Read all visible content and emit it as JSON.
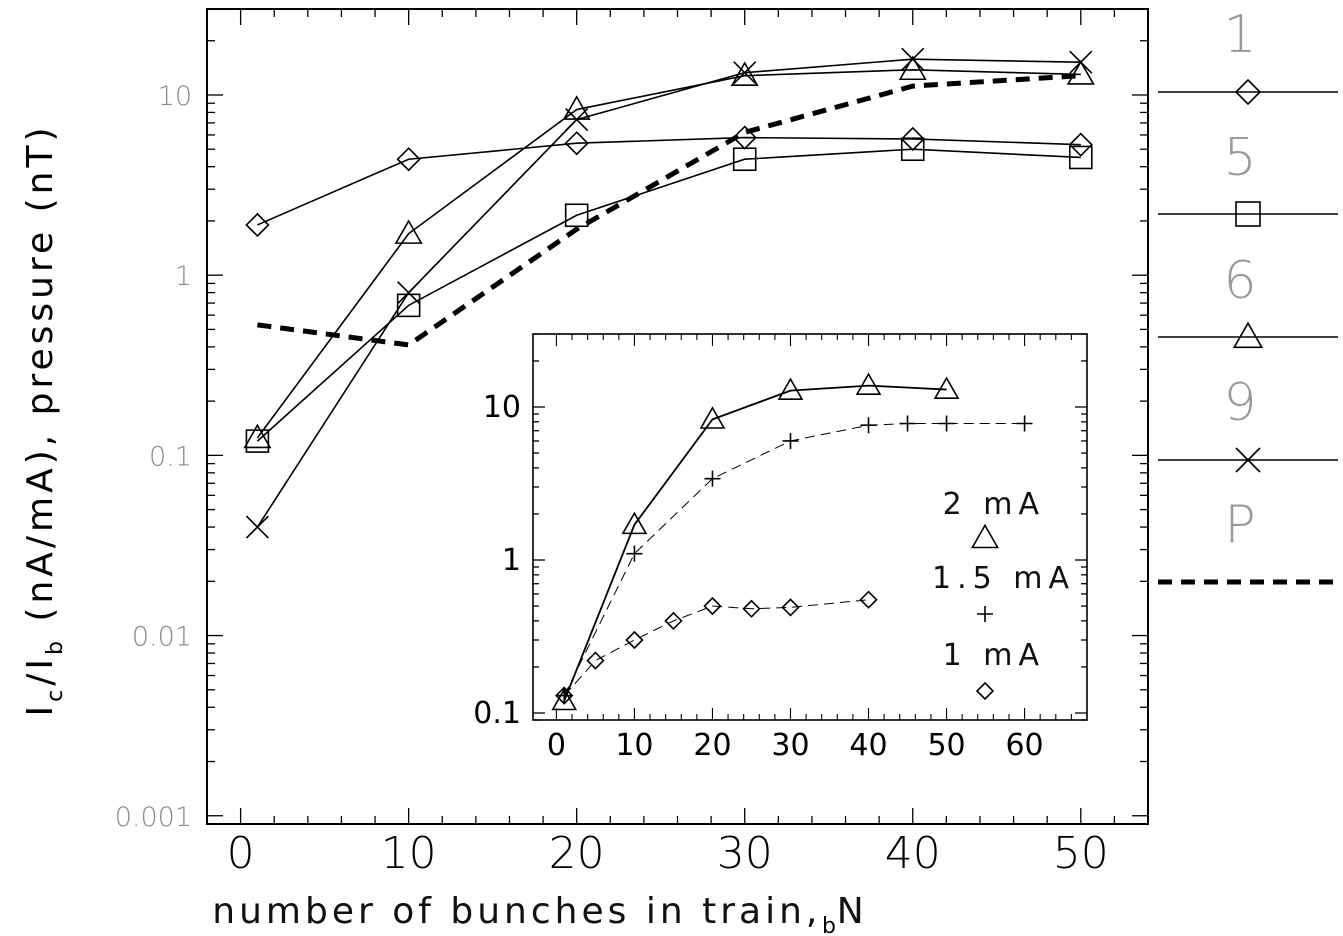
{
  "chart_data": [
    {
      "type": "line",
      "title": "",
      "xlabel": "number of bunches in train, N",
      "xlabel_sub": "b",
      "ylabel_parts": [
        "I",
        "c",
        "/I",
        "b",
        " (nA/mA), pressure (nT)"
      ],
      "xlim": [
        -2,
        54
      ],
      "ylim": [
        0.0009,
        30
      ],
      "yscale": "log",
      "x_ticks": [
        "0",
        "10",
        "20",
        "30",
        "40",
        "50"
      ],
      "y_ticks": [
        "0.001",
        "0.01",
        "0.1",
        "1",
        "10"
      ],
      "series": [
        {
          "name": "1",
          "marker": "diamond",
          "x": [
            1,
            10,
            20,
            30,
            40,
            50
          ],
          "y": [
            1.9,
            4.4,
            5.4,
            5.8,
            5.7,
            5.3
          ]
        },
        {
          "name": "5",
          "marker": "square",
          "x": [
            1,
            10,
            20,
            30,
            40,
            50
          ],
          "y": [
            0.12,
            0.68,
            2.15,
            4.4,
            5.0,
            4.5
          ]
        },
        {
          "name": "6",
          "marker": "triangle",
          "x": [
            1,
            10,
            20,
            30,
            40,
            50
          ],
          "y": [
            0.125,
            1.7,
            8.3,
            12.8,
            13.8,
            13.0
          ]
        },
        {
          "name": "9",
          "marker": "x",
          "x": [
            1,
            10,
            20,
            30,
            40,
            50
          ],
          "y": [
            0.04,
            0.8,
            7.3,
            13.3,
            15.8,
            15.2
          ]
        },
        {
          "name": "P",
          "marker": "none",
          "style": "dashed",
          "x": [
            1,
            10,
            20,
            30,
            40,
            50
          ],
          "y": [
            0.53,
            0.41,
            1.8,
            6.2,
            11.2,
            12.8
          ]
        }
      ],
      "legend_labels": [
        "1",
        "5",
        "6",
        "9",
        "P"
      ],
      "legend_placement": "right"
    },
    {
      "type": "line",
      "title": "",
      "xlim": [
        -3,
        68
      ],
      "ylim": [
        0.09,
        30
      ],
      "yscale": "log",
      "x_ticks": [
        "0",
        "10",
        "20",
        "30",
        "40",
        "50",
        "60"
      ],
      "y_ticks": [
        "0.1",
        "1",
        "10"
      ],
      "series": [
        {
          "name": "2 mA",
          "marker": "triangle",
          "style": "solid",
          "x": [
            1,
            10,
            20,
            30,
            40,
            50
          ],
          "y": [
            0.12,
            1.7,
            8.3,
            12.8,
            13.8,
            13.0
          ]
        },
        {
          "name": "1.5 mA",
          "marker": "plus",
          "style": "dashed",
          "x": [
            1,
            10,
            20,
            30,
            40,
            45,
            50,
            60
          ],
          "y": [
            0.13,
            1.1,
            3.4,
            6.0,
            7.6,
            7.8,
            7.8,
            7.8
          ]
        },
        {
          "name": "1 mA",
          "marker": "diamond",
          "style": "dashed",
          "x": [
            1,
            5,
            10,
            15,
            20,
            25,
            30,
            40
          ],
          "y": [
            0.13,
            0.22,
            0.3,
            0.4,
            0.5,
            0.48,
            0.49,
            0.55
          ]
        }
      ],
      "legend_placement": "right"
    }
  ]
}
